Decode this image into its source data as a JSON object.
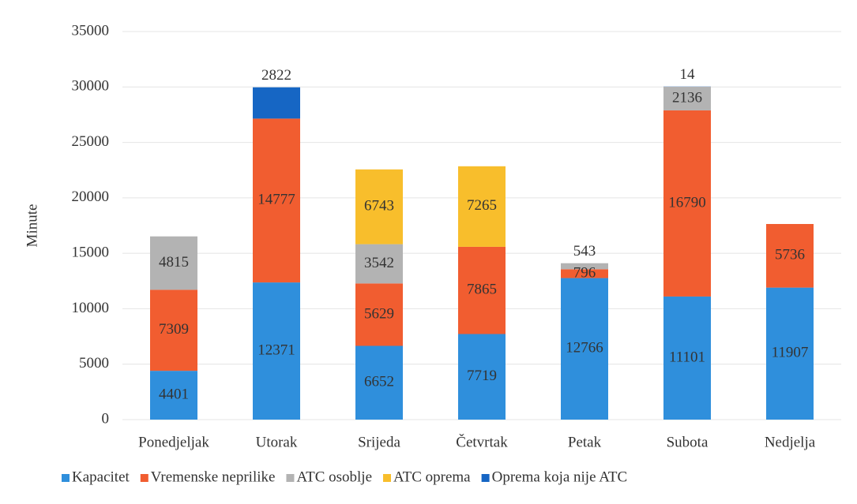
{
  "chart_data": {
    "type": "stacked_bar",
    "y_label": "Minute",
    "categories": [
      "Ponedjeljak",
      "Utorak",
      "Srijeda",
      "Četvrtak",
      "Petak",
      "Subota",
      "Nedjelja"
    ],
    "series": [
      {
        "name": "Kapacitet",
        "color": "#2f8fdc",
        "values": [
          4401,
          12371,
          6652,
          7719,
          12766,
          11101,
          11907
        ]
      },
      {
        "name": "Vremenske neprilike",
        "color": "#f15d30",
        "values": [
          7309,
          14777,
          5629,
          7865,
          796,
          16790,
          5736
        ]
      },
      {
        "name": "ATC osoblje",
        "color": "#b3b3b3",
        "values": [
          4815,
          null,
          3542,
          null,
          543,
          2136,
          null
        ]
      },
      {
        "name": "ATC oprema",
        "color": "#f8be2c",
        "values": [
          null,
          null,
          6743,
          7265,
          null,
          null,
          null
        ]
      },
      {
        "name": "Oprema koja nije ATC",
        "color": "#1666c4",
        "values": [
          null,
          2822,
          null,
          null,
          null,
          14,
          null
        ]
      }
    ],
    "ylim": [
      0,
      35000
    ],
    "yticks": [
      0,
      5000,
      10000,
      15000,
      20000,
      25000,
      30000,
      35000
    ],
    "grid": true,
    "legend": "bottom"
  }
}
